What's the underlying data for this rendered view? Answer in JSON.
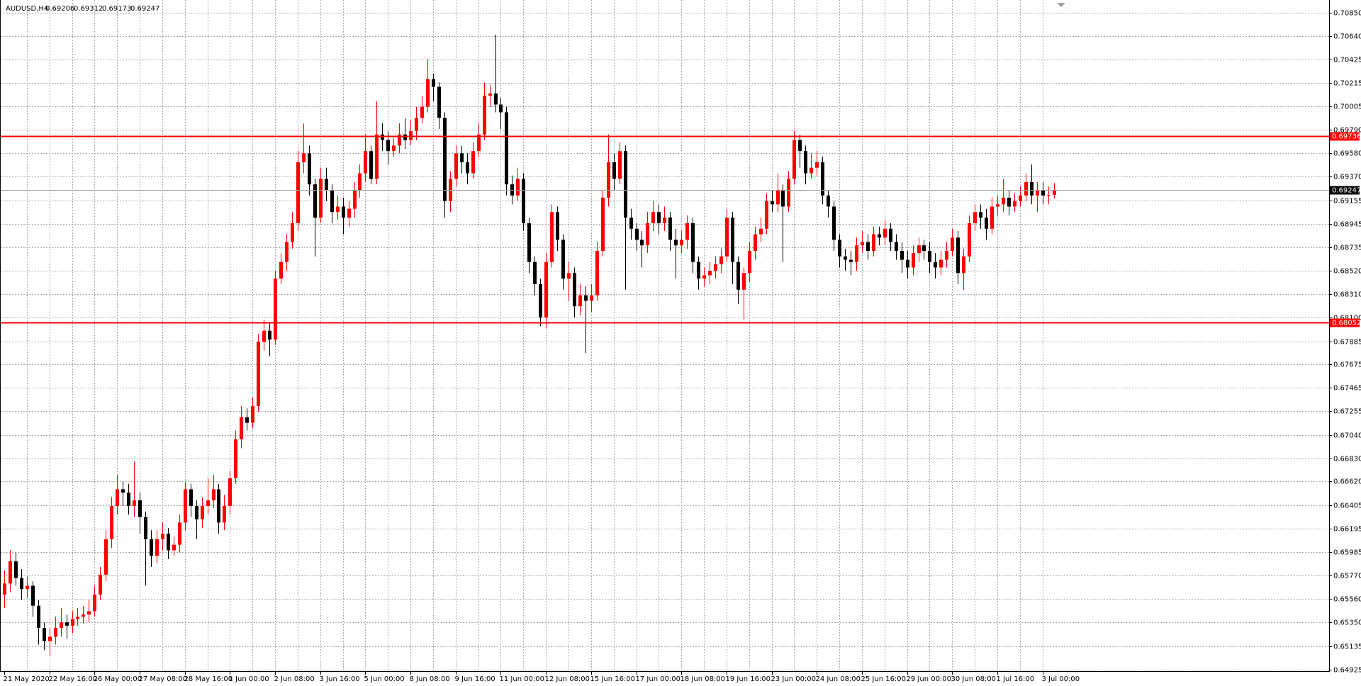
{
  "chart_data": {
    "type": "candlestick",
    "symbol": "AUDUSD,H4",
    "quote": [
      0.69206,
      0.69312,
      0.69173,
      0.69247
    ],
    "up_color": "#ff0000",
    "down_color": "#000000",
    "grid": true,
    "ylim": [
      0.6491,
      0.7095
    ],
    "yticks": [
      {
        "value": 0.7085,
        "label": "0.70850"
      },
      {
        "value": 0.7064,
        "label": "0.70640"
      },
      {
        "value": 0.70425,
        "label": "0.70425"
      },
      {
        "value": 0.70215,
        "label": "0.70215"
      },
      {
        "value": 0.70005,
        "label": "0.70005"
      },
      {
        "value": 0.6979,
        "label": "0.69790"
      },
      {
        "value": 0.6958,
        "label": "0.69580"
      },
      {
        "value": 0.6937,
        "label": "0.69370"
      },
      {
        "value": 0.69155,
        "label": "0.69155"
      },
      {
        "value": 0.68945,
        "label": "0.68945"
      },
      {
        "value": 0.68735,
        "label": "0.68735"
      },
      {
        "value": 0.6852,
        "label": "0.68520"
      },
      {
        "value": 0.6831,
        "label": "0.68310"
      },
      {
        "value": 0.681,
        "label": "0.68100"
      },
      {
        "value": 0.67885,
        "label": "0.67885"
      },
      {
        "value": 0.67675,
        "label": "0.67675"
      },
      {
        "value": 0.67465,
        "label": "0.67465"
      },
      {
        "value": 0.67255,
        "label": "0.67255"
      },
      {
        "value": 0.6704,
        "label": "0.67040"
      },
      {
        "value": 0.6683,
        "label": "0.66830"
      },
      {
        "value": 0.6662,
        "label": "0.66620"
      },
      {
        "value": 0.66405,
        "label": "0.66405"
      },
      {
        "value": 0.66195,
        "label": "0.66195"
      },
      {
        "value": 0.65985,
        "label": "0.65985"
      },
      {
        "value": 0.6577,
        "label": "0.65770"
      },
      {
        "value": 0.6556,
        "label": "0.65560"
      },
      {
        "value": 0.6535,
        "label": "0.65350"
      },
      {
        "value": 0.65135,
        "label": "0.65135"
      },
      {
        "value": 0.64925,
        "label": "0.64925"
      }
    ],
    "levels": [
      {
        "value": 0.69736,
        "color": "#ff0000"
      },
      {
        "value": 0.68052,
        "color": "#ff0000"
      }
    ],
    "bid": {
      "value": 0.69247,
      "color": "#a0a0a0"
    },
    "categories": [
      "21 May 2020",
      null,
      null,
      null,
      null,
      null,
      null,
      null,
      "22 May 16:00",
      null,
      null,
      null,
      null,
      null,
      null,
      null,
      "26 May 00:00",
      null,
      null,
      null,
      null,
      null,
      null,
      null,
      "27 May 08:00",
      null,
      null,
      null,
      null,
      null,
      null,
      null,
      "28 May 16:00",
      null,
      null,
      null,
      null,
      null,
      null,
      null,
      "1 Jun 00:00",
      null,
      null,
      null,
      null,
      null,
      null,
      null,
      "2 Jun 08:00",
      null,
      null,
      null,
      null,
      null,
      null,
      null,
      "3 Jun 16:00",
      null,
      null,
      null,
      null,
      null,
      null,
      null,
      "5 Jun 00:00",
      null,
      null,
      null,
      null,
      null,
      null,
      null,
      "8 Jun 08:00",
      null,
      null,
      null,
      null,
      null,
      null,
      null,
      "9 Jun 16:00",
      null,
      null,
      null,
      null,
      null,
      null,
      null,
      "11 Jun 00:00",
      null,
      null,
      null,
      null,
      null,
      null,
      null,
      "12 Jun 08:00",
      null,
      null,
      null,
      null,
      null,
      null,
      null,
      "15 Jun 16:00",
      null,
      null,
      null,
      null,
      null,
      null,
      null,
      "17 Jun 00:00",
      null,
      null,
      null,
      null,
      null,
      null,
      null,
      "18 Jun 08:00",
      null,
      null,
      null,
      null,
      null,
      null,
      null,
      "19 Jun 16:00",
      null,
      null,
      null,
      null,
      null,
      null,
      null,
      "23 Jun 00:00",
      null,
      null,
      null,
      null,
      null,
      null,
      null,
      "24 Jun 08:00",
      null,
      null,
      null,
      null,
      null,
      null,
      null,
      "25 Jun 16:00",
      null,
      null,
      null,
      null,
      null,
      null,
      null,
      "29 Jun 00:00",
      null,
      null,
      null,
      null,
      null,
      null,
      null,
      "30 Jun 08:00",
      null,
      null,
      null,
      null,
      null,
      null,
      null,
      "1 Jul 16:00",
      null,
      null,
      null,
      null,
      null,
      null,
      null,
      "3 Jul 00:00",
      null,
      null
    ],
    "ohlc": [
      [
        0.656,
        0.6582,
        0.6548,
        0.657
      ],
      [
        0.657,
        0.66,
        0.6562,
        0.659
      ],
      [
        0.659,
        0.6598,
        0.6568,
        0.6575
      ],
      [
        0.6575,
        0.6583,
        0.6555,
        0.6565
      ],
      [
        0.6565,
        0.6576,
        0.6557,
        0.6568
      ],
      [
        0.6568,
        0.6572,
        0.654,
        0.655
      ],
      [
        0.655,
        0.6555,
        0.6515,
        0.653
      ],
      [
        0.653,
        0.6535,
        0.651,
        0.6518
      ],
      [
        0.6518,
        0.653,
        0.6505,
        0.6522
      ],
      [
        0.6522,
        0.654,
        0.6515,
        0.653
      ],
      [
        0.653,
        0.6548,
        0.6522,
        0.6535
      ],
      [
        0.6535,
        0.6542,
        0.652,
        0.6532
      ],
      [
        0.6532,
        0.6545,
        0.6525,
        0.6538
      ],
      [
        0.6538,
        0.6548,
        0.6532,
        0.654
      ],
      [
        0.654,
        0.655,
        0.6534,
        0.6542
      ],
      [
        0.6542,
        0.6555,
        0.6535,
        0.6545
      ],
      [
        0.6545,
        0.6568,
        0.654,
        0.656
      ],
      [
        0.656,
        0.6585,
        0.6555,
        0.6578
      ],
      [
        0.6578,
        0.6618,
        0.6572,
        0.661
      ],
      [
        0.661,
        0.6648,
        0.6602,
        0.664
      ],
      [
        0.664,
        0.6668,
        0.6632,
        0.6655
      ],
      [
        0.6655,
        0.6662,
        0.664,
        0.6652
      ],
      [
        0.6652,
        0.666,
        0.6632,
        0.664
      ],
      [
        0.664,
        0.668,
        0.663,
        0.6645
      ],
      [
        0.6645,
        0.6652,
        0.6615,
        0.663
      ],
      [
        0.663,
        0.6635,
        0.6568,
        0.661
      ],
      [
        0.661,
        0.6618,
        0.6585,
        0.6595
      ],
      [
        0.6595,
        0.6618,
        0.6588,
        0.661
      ],
      [
        0.661,
        0.6625,
        0.66,
        0.6615
      ],
      [
        0.6615,
        0.662,
        0.6592,
        0.66
      ],
      [
        0.66,
        0.6612,
        0.6595,
        0.6605
      ],
      [
        0.6605,
        0.6632,
        0.6598,
        0.6625
      ],
      [
        0.6625,
        0.6662,
        0.6618,
        0.6655
      ],
      [
        0.6655,
        0.666,
        0.663,
        0.664
      ],
      [
        0.664,
        0.6645,
        0.661,
        0.6628
      ],
      [
        0.6628,
        0.6648,
        0.662,
        0.664
      ],
      [
        0.664,
        0.6665,
        0.6632,
        0.6645
      ],
      [
        0.6645,
        0.6668,
        0.6638,
        0.6655
      ],
      [
        0.6655,
        0.666,
        0.6615,
        0.6625
      ],
      [
        0.6625,
        0.665,
        0.6618,
        0.664
      ],
      [
        0.664,
        0.6672,
        0.6632,
        0.6665
      ],
      [
        0.6665,
        0.6708,
        0.666,
        0.67
      ],
      [
        0.67,
        0.673,
        0.6692,
        0.672
      ],
      [
        0.672,
        0.6728,
        0.6708,
        0.6715
      ],
      [
        0.6715,
        0.6738,
        0.671,
        0.673
      ],
      [
        0.673,
        0.6795,
        0.6725,
        0.6788
      ],
      [
        0.6788,
        0.6808,
        0.678,
        0.6798
      ],
      [
        0.6798,
        0.6805,
        0.6775,
        0.679
      ],
      [
        0.679,
        0.6852,
        0.6785,
        0.6845
      ],
      [
        0.6845,
        0.6868,
        0.684,
        0.686
      ],
      [
        0.686,
        0.6885,
        0.6852,
        0.6878
      ],
      [
        0.6878,
        0.6905,
        0.6872,
        0.6895
      ],
      [
        0.6895,
        0.696,
        0.6888,
        0.695
      ],
      [
        0.695,
        0.6985,
        0.694,
        0.6958
      ],
      [
        0.6958,
        0.6965,
        0.692,
        0.693
      ],
      [
        0.693,
        0.6935,
        0.6865,
        0.69
      ],
      [
        0.69,
        0.6945,
        0.6895,
        0.6935
      ],
      [
        0.6935,
        0.6945,
        0.6915,
        0.6925
      ],
      [
        0.6925,
        0.693,
        0.6895,
        0.6905
      ],
      [
        0.6905,
        0.692,
        0.6898,
        0.691
      ],
      [
        0.691,
        0.6918,
        0.6885,
        0.69
      ],
      [
        0.69,
        0.6915,
        0.6892,
        0.6908
      ],
      [
        0.6908,
        0.6932,
        0.69,
        0.6925
      ],
      [
        0.6925,
        0.6948,
        0.6918,
        0.694
      ],
      [
        0.694,
        0.6975,
        0.6932,
        0.696
      ],
      [
        0.696,
        0.6965,
        0.693,
        0.6935
      ],
      [
        0.6935,
        0.7005,
        0.693,
        0.6975
      ],
      [
        0.6975,
        0.6985,
        0.696,
        0.697
      ],
      [
        0.697,
        0.6978,
        0.6948,
        0.696
      ],
      [
        0.696,
        0.6972,
        0.6955,
        0.6965
      ],
      [
        0.6965,
        0.6985,
        0.6958,
        0.6975
      ],
      [
        0.6975,
        0.699,
        0.6962,
        0.697
      ],
      [
        0.697,
        0.6988,
        0.6965,
        0.6978
      ],
      [
        0.6978,
        0.7,
        0.697,
        0.699
      ],
      [
        0.699,
        0.701,
        0.6985,
        0.7
      ],
      [
        0.7,
        0.7043,
        0.6995,
        0.7025
      ],
      [
        0.7025,
        0.703,
        0.7005,
        0.7018
      ],
      [
        0.7018,
        0.7022,
        0.698,
        0.699
      ],
      [
        0.699,
        0.6995,
        0.69,
        0.6915
      ],
      [
        0.6915,
        0.6942,
        0.6905,
        0.6935
      ],
      [
        0.6935,
        0.6965,
        0.6928,
        0.6958
      ],
      [
        0.6958,
        0.6965,
        0.694,
        0.695
      ],
      [
        0.695,
        0.6958,
        0.693,
        0.694
      ],
      [
        0.694,
        0.6968,
        0.6935,
        0.696
      ],
      [
        0.696,
        0.6985,
        0.6955,
        0.6975
      ],
      [
        0.6975,
        0.7022,
        0.697,
        0.701
      ],
      [
        0.701,
        0.702,
        0.7,
        0.7012
      ],
      [
        0.7012,
        0.7065,
        0.6995,
        0.7002
      ],
      [
        0.7002,
        0.7008,
        0.698,
        0.6995
      ],
      [
        0.6995,
        0.7,
        0.692,
        0.693
      ],
      [
        0.693,
        0.6938,
        0.6912,
        0.692
      ],
      [
        0.692,
        0.6945,
        0.6915,
        0.6935
      ],
      [
        0.6935,
        0.694,
        0.6888,
        0.6895
      ],
      [
        0.6895,
        0.69,
        0.685,
        0.686
      ],
      [
        0.686,
        0.6865,
        0.683,
        0.684
      ],
      [
        0.684,
        0.6845,
        0.6802,
        0.681
      ],
      [
        0.681,
        0.6868,
        0.68,
        0.686
      ],
      [
        0.686,
        0.6912,
        0.6855,
        0.6905
      ],
      [
        0.6905,
        0.691,
        0.687,
        0.688
      ],
      [
        0.688,
        0.6885,
        0.6835,
        0.6845
      ],
      [
        0.6845,
        0.686,
        0.6825,
        0.685
      ],
      [
        0.685,
        0.6855,
        0.681,
        0.682
      ],
      [
        0.682,
        0.684,
        0.6812,
        0.683
      ],
      [
        0.683,
        0.6838,
        0.6778,
        0.6825
      ],
      [
        0.6825,
        0.684,
        0.6815,
        0.683
      ],
      [
        0.683,
        0.6878,
        0.6825,
        0.687
      ],
      [
        0.687,
        0.6925,
        0.6865,
        0.6918
      ],
      [
        0.6918,
        0.6975,
        0.691,
        0.695
      ],
      [
        0.695,
        0.6958,
        0.6925,
        0.6935
      ],
      [
        0.6935,
        0.6968,
        0.693,
        0.696
      ],
      [
        0.696,
        0.6965,
        0.6835,
        0.69
      ],
      [
        0.69,
        0.6908,
        0.688,
        0.689
      ],
      [
        0.689,
        0.6895,
        0.687,
        0.688
      ],
      [
        0.688,
        0.6888,
        0.6855,
        0.6875
      ],
      [
        0.6875,
        0.6905,
        0.6868,
        0.6895
      ],
      [
        0.6895,
        0.6915,
        0.6888,
        0.6905
      ],
      [
        0.6905,
        0.6912,
        0.6885,
        0.6895
      ],
      [
        0.6895,
        0.691,
        0.6888,
        0.69
      ],
      [
        0.69,
        0.6905,
        0.687,
        0.688
      ],
      [
        0.688,
        0.689,
        0.6845,
        0.6875
      ],
      [
        0.6875,
        0.6888,
        0.6868,
        0.688
      ],
      [
        0.688,
        0.6902,
        0.6872,
        0.6895
      ],
      [
        0.6895,
        0.69,
        0.685,
        0.686
      ],
      [
        0.686,
        0.6865,
        0.6835,
        0.6845
      ],
      [
        0.6845,
        0.6855,
        0.6838,
        0.6848
      ],
      [
        0.6848,
        0.686,
        0.684,
        0.6852
      ],
      [
        0.6852,
        0.6865,
        0.6845,
        0.6858
      ],
      [
        0.6858,
        0.6872,
        0.685,
        0.6865
      ],
      [
        0.6865,
        0.6908,
        0.686,
        0.69
      ],
      [
        0.69,
        0.6905,
        0.684,
        0.686
      ],
      [
        0.686,
        0.6865,
        0.6822,
        0.6835
      ],
      [
        0.6835,
        0.6855,
        0.6808,
        0.685
      ],
      [
        0.685,
        0.6878,
        0.6842,
        0.687
      ],
      [
        0.687,
        0.6892,
        0.6862,
        0.6885
      ],
      [
        0.6885,
        0.69,
        0.6878,
        0.689
      ],
      [
        0.689,
        0.6922,
        0.6885,
        0.6915
      ],
      [
        0.6915,
        0.6925,
        0.6905,
        0.6912
      ],
      [
        0.6912,
        0.694,
        0.6905,
        0.6925
      ],
      [
        0.6925,
        0.693,
        0.686,
        0.691
      ],
      [
        0.691,
        0.6942,
        0.6905,
        0.6935
      ],
      [
        0.6935,
        0.6978,
        0.693,
        0.697
      ],
      [
        0.697,
        0.6975,
        0.6945,
        0.696
      ],
      [
        0.696,
        0.6965,
        0.693,
        0.694
      ],
      [
        0.694,
        0.6958,
        0.6935,
        0.6945
      ],
      [
        0.6945,
        0.696,
        0.6938,
        0.695
      ],
      [
        0.695,
        0.6955,
        0.6912,
        0.692
      ],
      [
        0.692,
        0.6925,
        0.69,
        0.691
      ],
      [
        0.691,
        0.6915,
        0.687,
        0.688
      ],
      [
        0.688,
        0.6885,
        0.6855,
        0.6865
      ],
      [
        0.6865,
        0.6872,
        0.6852,
        0.6862
      ],
      [
        0.6862,
        0.687,
        0.6848,
        0.686
      ],
      [
        0.686,
        0.6882,
        0.6852,
        0.6875
      ],
      [
        0.6875,
        0.6888,
        0.6868,
        0.6878
      ],
      [
        0.6878,
        0.6885,
        0.6862,
        0.687
      ],
      [
        0.687,
        0.6892,
        0.6865,
        0.6885
      ],
      [
        0.6885,
        0.6892,
        0.6875,
        0.6882
      ],
      [
        0.6882,
        0.6898,
        0.6875,
        0.689
      ],
      [
        0.689,
        0.6895,
        0.687,
        0.6878
      ],
      [
        0.6878,
        0.6885,
        0.6862,
        0.687
      ],
      [
        0.687,
        0.6878,
        0.685,
        0.6862
      ],
      [
        0.6862,
        0.687,
        0.6845,
        0.6855
      ],
      [
        0.6855,
        0.6875,
        0.6848,
        0.6868
      ],
      [
        0.6868,
        0.6882,
        0.686,
        0.6875
      ],
      [
        0.6875,
        0.688,
        0.6862,
        0.687
      ],
      [
        0.687,
        0.6878,
        0.685,
        0.686
      ],
      [
        0.686,
        0.6868,
        0.6845,
        0.6855
      ],
      [
        0.6855,
        0.687,
        0.6848,
        0.6862
      ],
      [
        0.6862,
        0.6878,
        0.6855,
        0.687
      ],
      [
        0.687,
        0.689,
        0.6865,
        0.6882
      ],
      [
        0.6882,
        0.6888,
        0.684,
        0.685
      ],
      [
        0.685,
        0.6872,
        0.6835,
        0.6865
      ],
      [
        0.6865,
        0.6902,
        0.686,
        0.6895
      ],
      [
        0.6895,
        0.6912,
        0.6888,
        0.6905
      ],
      [
        0.6905,
        0.6912,
        0.689,
        0.69
      ],
      [
        0.69,
        0.6908,
        0.688,
        0.689
      ],
      [
        0.689,
        0.6918,
        0.6885,
        0.691
      ],
      [
        0.691,
        0.692,
        0.6902,
        0.6912
      ],
      [
        0.6912,
        0.6935,
        0.6905,
        0.6918
      ],
      [
        0.6918,
        0.6925,
        0.6902,
        0.691
      ],
      [
        0.691,
        0.6922,
        0.6905,
        0.6915
      ],
      [
        0.6915,
        0.6928,
        0.691,
        0.692
      ],
      [
        0.692,
        0.694,
        0.6915,
        0.6932
      ],
      [
        0.6932,
        0.6948,
        0.6912,
        0.692
      ],
      [
        0.692,
        0.6932,
        0.6905,
        0.6925
      ],
      [
        0.6925,
        0.6932,
        0.6912,
        0.692
      ],
      [
        0.692,
        0.6928,
        0.6912,
        0.69206
      ],
      [
        0.69206,
        0.69312,
        0.69173,
        0.69247
      ]
    ]
  }
}
